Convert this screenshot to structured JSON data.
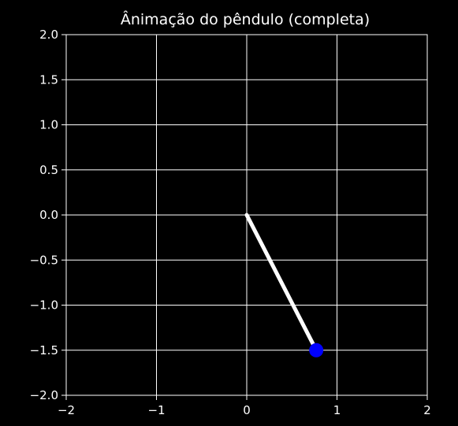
{
  "chart_data": {
    "type": "line",
    "title": "Ânimação do pêndulo (completa)",
    "xlabel": "",
    "ylabel": "",
    "xlim": [
      -2.0,
      2.0
    ],
    "ylim": [
      -2.0,
      2.0
    ],
    "xticks": [
      -2,
      -1,
      0,
      1,
      2
    ],
    "xtick_labels": [
      "−2",
      "−1",
      "0",
      "1",
      "2"
    ],
    "yticks": [
      -2.0,
      -1.5,
      -1.0,
      -0.5,
      0.0,
      0.5,
      1.0,
      1.5,
      2.0
    ],
    "ytick_labels": [
      "−2.0",
      "−1.5",
      "−1.0",
      "−0.5",
      "0.0",
      "0.5",
      "1.0",
      "1.5",
      "2.0"
    ],
    "grid": true,
    "aspect": "equal",
    "series": [
      {
        "type": "line",
        "x": [
          0.0,
          0.77
        ],
        "y": [
          0.0,
          -1.5
        ],
        "color": "#ffffff"
      },
      {
        "type": "scatter",
        "x": [
          0.77
        ],
        "y": [
          -1.5
        ],
        "color": "#0000ff"
      }
    ]
  },
  "colors": {
    "background": "#000000",
    "axes": "#ffffff",
    "grid": "#ffffff",
    "rod": "#ffffff",
    "bob": "#0000ff"
  }
}
